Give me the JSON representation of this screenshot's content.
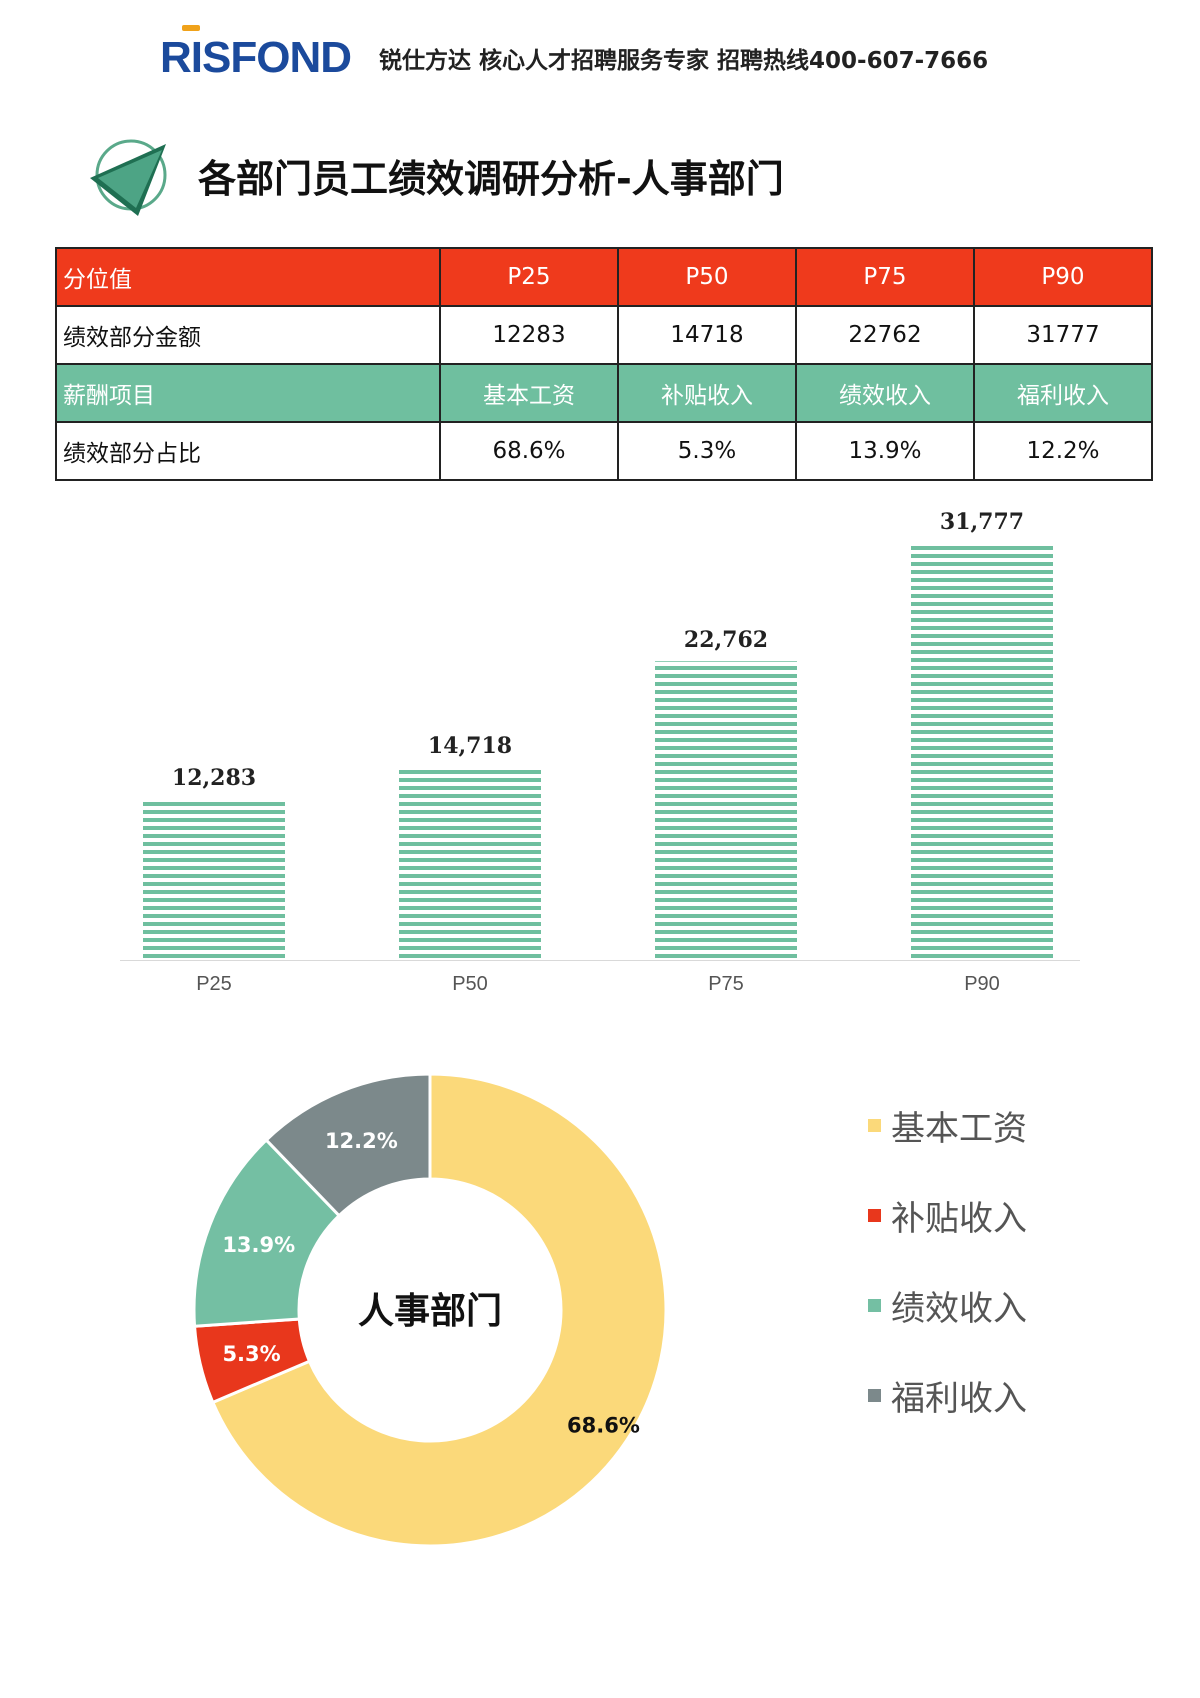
{
  "header": {
    "logo_text": "RISFOND",
    "slogan": "锐仕方达 核心人才招聘服务专家 招聘热线400-607-7666"
  },
  "page": {
    "title": "各部门员工绩效调研分析-人事部门"
  },
  "table": {
    "rows": [
      {
        "label": "分位值",
        "cells": [
          "P25",
          "P50",
          "P75",
          "P90"
        ],
        "style": "red"
      },
      {
        "label": "绩效部分金额",
        "cells": [
          "12283",
          "14718",
          "22762",
          "31777"
        ],
        "style": "white"
      },
      {
        "label": "薪酬项目",
        "cells": [
          "基本工资",
          "补贴收入",
          "绩效收入",
          "福利收入"
        ],
        "style": "green"
      },
      {
        "label": "绩效部分占比",
        "cells": [
          "68.6%",
          "5.3%",
          "13.9%",
          "12.2%"
        ],
        "style": "white"
      }
    ]
  },
  "colors": {
    "brand_blue": "#1b4a9c",
    "brand_orange": "#f0a21a",
    "header_red": "#ef3a1c",
    "header_green": "#6fbf9f",
    "bar_green": "#6fbf9f",
    "donut_yellow": "#fbd97a",
    "donut_red": "#e8371c",
    "donut_green": "#74bfa3",
    "donut_gray": "#7c898b"
  },
  "chart_data": [
    {
      "type": "bar",
      "categories": [
        "P25",
        "P50",
        "P75",
        "P90"
      ],
      "values": [
        12283,
        14718,
        22762,
        31777
      ],
      "value_labels": [
        "12,283",
        "14,718",
        "22,762",
        "31,777"
      ],
      "title": "",
      "xlabel": "",
      "ylabel": "",
      "ylim": [
        0,
        32000
      ],
      "grid": false
    },
    {
      "type": "pie",
      "variant": "donut",
      "center_label": "人事部门",
      "categories": [
        "基本工资",
        "补贴收入",
        "绩效收入",
        "福利收入"
      ],
      "values": [
        68.6,
        5.3,
        13.9,
        12.2
      ],
      "value_labels": [
        "68.6%",
        "5.3%",
        "13.9%",
        "12.2%"
      ],
      "legend": "right"
    }
  ]
}
